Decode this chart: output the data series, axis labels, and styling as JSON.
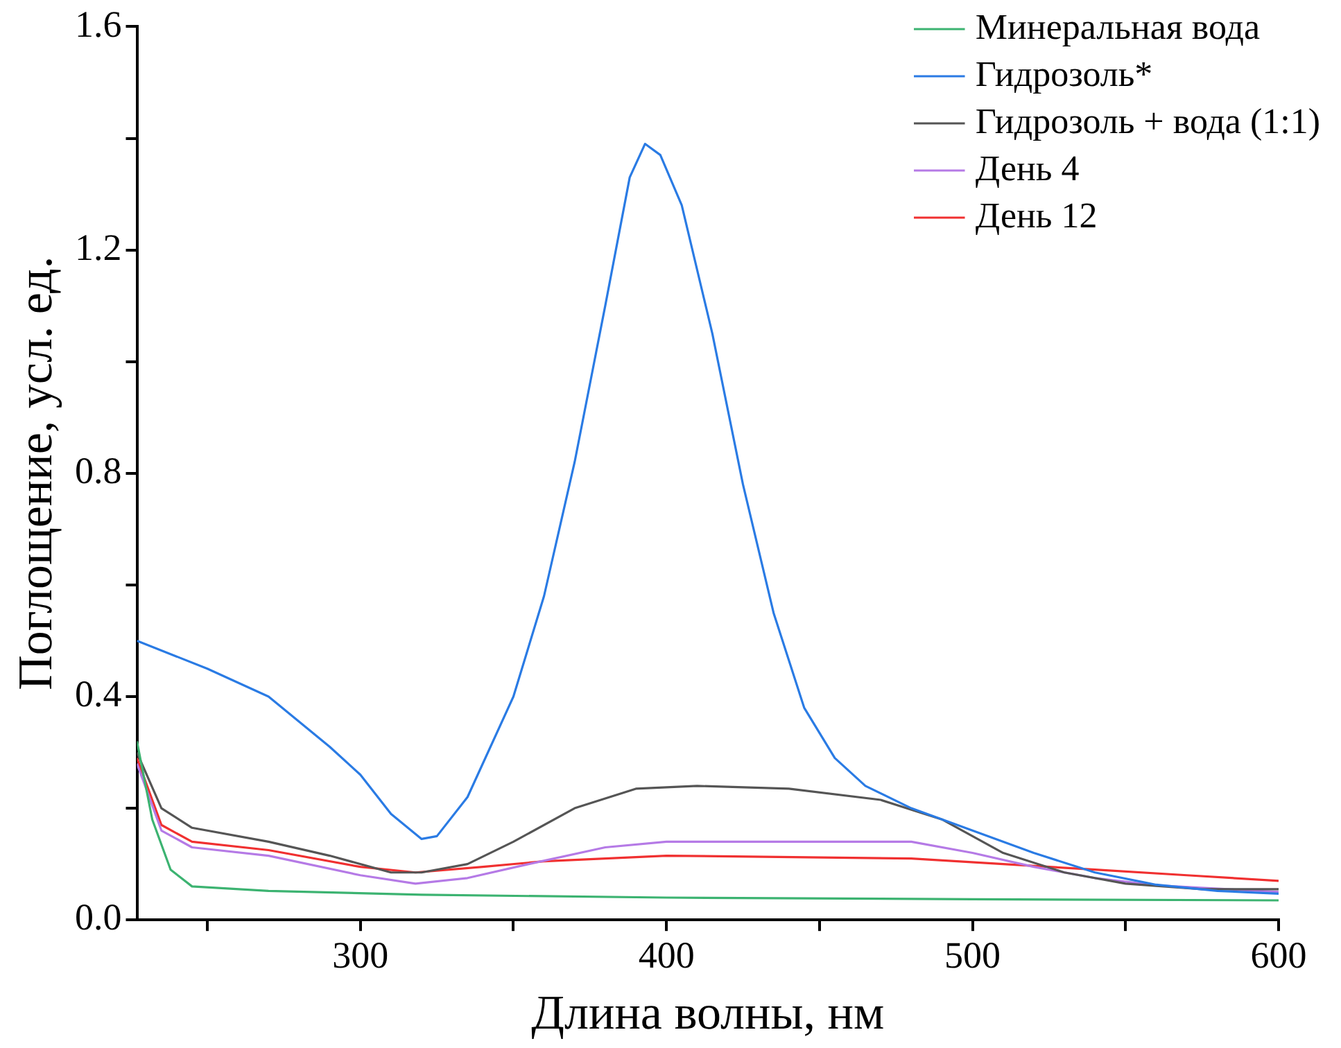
{
  "chart_data": {
    "type": "line",
    "xlabel": "Длина волны, нм",
    "ylabel": "Поглощение, усл. ед.",
    "xlim": [
      227,
      600
    ],
    "ylim": [
      0,
      1.6
    ],
    "xticks": [
      {
        "value": 250,
        "label": null
      },
      300,
      {
        "value": 350,
        "label": null
      },
      400,
      {
        "value": 450,
        "label": null
      },
      500,
      {
        "value": 550,
        "label": null
      },
      600
    ],
    "yticks": [
      {
        "value": 0,
        "label": "0.0"
      },
      {
        "value": 0.2,
        "label": null
      },
      0.4,
      {
        "value": 0.6,
        "label": null
      },
      0.8,
      {
        "value": 1.0,
        "label": null
      },
      1.2,
      {
        "value": 1.4,
        "label": null
      },
      1.6
    ],
    "grid": false,
    "legend": "top right",
    "marker": "none",
    "line_style": "solid",
    "series": [
      {
        "name": "Минеральная вода",
        "color": "#3cb371",
        "x": [
          227,
          232,
          238,
          245,
          270,
          320,
          400,
          500,
          600
        ],
        "values": [
          0.32,
          0.18,
          0.09,
          0.06,
          0.052,
          0.045,
          0.04,
          0.037,
          0.035
        ]
      },
      {
        "name": "Гидрозоль*",
        "color": "#2a7be4",
        "x": [
          227,
          250,
          270,
          290,
          300,
          310,
          320,
          325,
          335,
          350,
          360,
          370,
          380,
          388,
          393,
          398,
          405,
          415,
          425,
          435,
          445,
          455,
          465,
          480,
          500,
          520,
          540,
          560,
          580,
          600
        ],
        "values": [
          0.5,
          0.45,
          0.4,
          0.31,
          0.26,
          0.19,
          0.145,
          0.15,
          0.22,
          0.4,
          0.58,
          0.82,
          1.1,
          1.33,
          1.39,
          1.37,
          1.28,
          1.05,
          0.78,
          0.55,
          0.38,
          0.29,
          0.24,
          0.2,
          0.16,
          0.12,
          0.085,
          0.063,
          0.052,
          0.047
        ]
      },
      {
        "name": "Гидрозоль + вода (1:1)",
        "color": "#555555",
        "x": [
          227,
          235,
          245,
          270,
          290,
          310,
          320,
          335,
          350,
          370,
          390,
          410,
          440,
          470,
          490,
          510,
          530,
          550,
          575,
          600
        ],
        "values": [
          0.3,
          0.2,
          0.165,
          0.14,
          0.115,
          0.085,
          0.085,
          0.1,
          0.14,
          0.2,
          0.235,
          0.24,
          0.235,
          0.215,
          0.18,
          0.12,
          0.085,
          0.065,
          0.055,
          0.055
        ]
      },
      {
        "name": "День 4",
        "color": "#b57ae6",
        "x": [
          227,
          235,
          245,
          270,
          300,
          318,
          335,
          355,
          380,
          400,
          480,
          500,
          520,
          540,
          560,
          600
        ],
        "values": [
          0.28,
          0.16,
          0.13,
          0.115,
          0.08,
          0.065,
          0.075,
          0.1,
          0.13,
          0.14,
          0.14,
          0.12,
          0.095,
          0.075,
          0.062,
          0.05
        ]
      },
      {
        "name": "День 12",
        "color": "#f03030",
        "x": [
          227,
          235,
          245,
          270,
          300,
          318,
          340,
          360,
          400,
          480,
          510,
          540,
          570,
          600
        ],
        "values": [
          0.29,
          0.17,
          0.14,
          0.125,
          0.095,
          0.085,
          0.095,
          0.105,
          0.115,
          0.11,
          0.1,
          0.09,
          0.08,
          0.07
        ]
      }
    ]
  }
}
